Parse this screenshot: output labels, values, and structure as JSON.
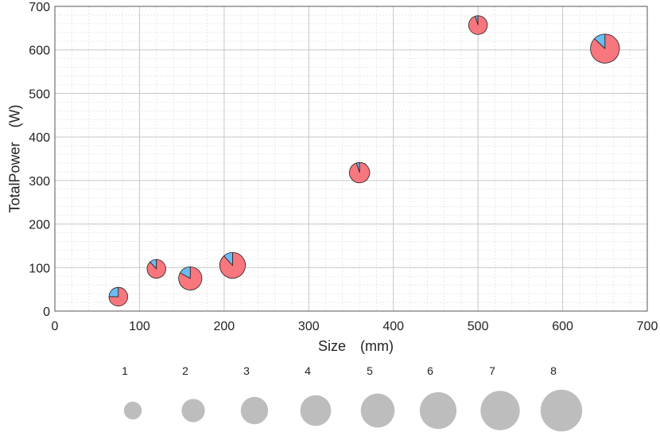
{
  "chart_data": {
    "type": "scatter",
    "subtype": "bubble-pie",
    "xlabel": "Size (mm)",
    "ylabel": "TotalPower (W)",
    "xlim": [
      0,
      700
    ],
    "ylim": [
      0,
      700
    ],
    "x_ticks": [
      "0",
      "100",
      "200",
      "300",
      "400",
      "500",
      "600",
      "700"
    ],
    "y_ticks": [
      "0",
      "100",
      "200",
      "300",
      "400",
      "500",
      "600",
      "700"
    ],
    "grid": true,
    "minor_grid": true,
    "slice_colors": [
      "#6bbcf5",
      "#f8767d"
    ],
    "points": [
      {
        "x": 75,
        "y": 33,
        "size": 2,
        "fractions": [
          0.25,
          0.75
        ]
      },
      {
        "x": 120,
        "y": 97,
        "size": 2,
        "fractions": [
          0.12,
          0.88
        ]
      },
      {
        "x": 160,
        "y": 75,
        "size": 3.5,
        "fractions": [
          0.17,
          0.83
        ]
      },
      {
        "x": 210,
        "y": 105,
        "size": 4.5,
        "fractions": [
          0.12,
          0.88
        ]
      },
      {
        "x": 360,
        "y": 318,
        "size": 2.5,
        "fractions": [
          0.05,
          0.95
        ]
      },
      {
        "x": 500,
        "y": 657,
        "size": 2,
        "fractions": [
          0.05,
          0.95
        ]
      },
      {
        "x": 650,
        "y": 603,
        "size": 6,
        "fractions": [
          0.13,
          0.87
        ]
      }
    ],
    "size_legend": {
      "labels": [
        "1",
        "2",
        "3",
        "4",
        "5",
        "6",
        "7",
        "8"
      ],
      "values": [
        1,
        2,
        3,
        4,
        5,
        6,
        7,
        8
      ],
      "color": "#bdbdbd"
    }
  }
}
